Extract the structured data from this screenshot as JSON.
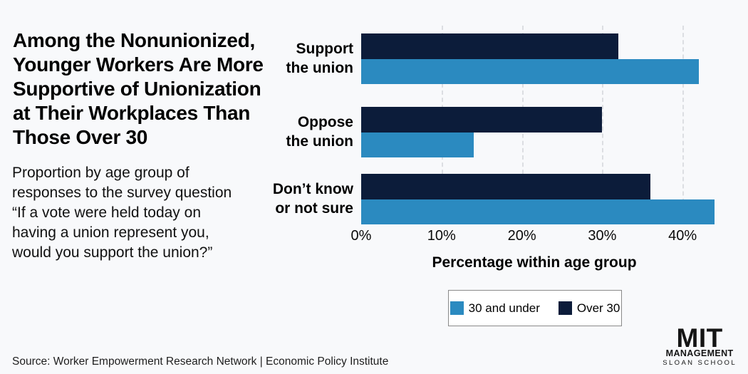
{
  "page": {
    "background": "#f8f9fb"
  },
  "header": {
    "title_lines": [
      "Among the Nonunionized,",
      "Younger Workers Are More",
      "Supportive of Unionization",
      "at Their Workplaces Than",
      "Those Over 30"
    ],
    "subtitle_lines": [
      "Proportion by age group of",
      "responses to the survey question",
      "“If a vote were held today on",
      "having a union represent you,",
      "would you support the union?”"
    ]
  },
  "chart_data": {
    "type": "bar",
    "orientation": "horizontal",
    "title": "Among the Nonunionized, Younger Workers Are More Supportive of Unionization at Their Workplaces Than Those Over 30",
    "subtitle": "Proportion by age group of responses to the survey question “If a vote were held today on having a union represent you, would you support the union?”",
    "categories": [
      [
        "Support",
        "the union"
      ],
      [
        "Oppose",
        "the union"
      ],
      [
        "Don’t know",
        "or not sure"
      ]
    ],
    "series": [
      {
        "name": "30 and under",
        "color": "#2b8ac0",
        "values": [
          42,
          14,
          44
        ]
      },
      {
        "name": "Over 30",
        "color": "#0c1c3a",
        "values": [
          32,
          30,
          36
        ]
      }
    ],
    "xlabel": "Percentage within age group",
    "ticks": [
      {
        "label": "0%",
        "value": 0
      },
      {
        "label": "10%",
        "value": 10
      },
      {
        "label": "20%",
        "value": 20
      },
      {
        "label": "30%",
        "value": 30
      },
      {
        "label": "40%",
        "value": 40
      }
    ],
    "xlim": [
      0,
      48
    ],
    "grid": "vertical-dashed",
    "legend_position": "bottom-center"
  },
  "footer": {
    "source": "Source: Worker Empowerment Research Network | Economic Policy Institute",
    "logo": {
      "line1": "MIT",
      "line2": "MANAGEMENT",
      "line3": "SLOAN SCHOOL"
    }
  }
}
